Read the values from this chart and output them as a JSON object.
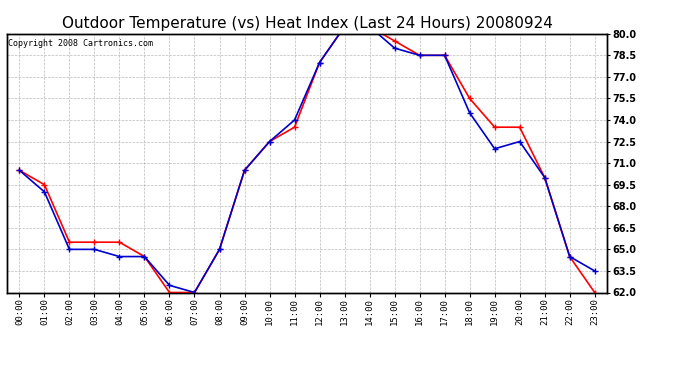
{
  "title": "Outdoor Temperature (vs) Heat Index (Last 24 Hours) 20080924",
  "copyright": "Copyright 2008 Cartronics.com",
  "hours": [
    "00:00",
    "01:00",
    "02:00",
    "03:00",
    "04:00",
    "05:00",
    "06:00",
    "07:00",
    "08:00",
    "09:00",
    "10:00",
    "11:00",
    "12:00",
    "13:00",
    "14:00",
    "15:00",
    "16:00",
    "17:00",
    "18:00",
    "19:00",
    "20:00",
    "21:00",
    "22:00",
    "23:00"
  ],
  "temp": [
    70.5,
    69.5,
    65.5,
    65.5,
    65.5,
    64.5,
    62.0,
    62.0,
    65.0,
    70.5,
    72.5,
    73.5,
    78.0,
    80.5,
    80.5,
    79.5,
    78.5,
    78.5,
    75.5,
    73.5,
    73.5,
    70.0,
    64.5,
    62.0
  ],
  "heat_index": [
    70.5,
    69.0,
    65.0,
    65.0,
    64.5,
    64.5,
    62.5,
    62.0,
    65.0,
    70.5,
    72.5,
    74.0,
    78.0,
    80.5,
    80.5,
    79.0,
    78.5,
    78.5,
    74.5,
    72.0,
    72.5,
    70.0,
    64.5,
    63.5
  ],
  "temp_color": "#FF0000",
  "heat_index_color": "#0000CC",
  "ylim_min": 62.0,
  "ylim_max": 80.0,
  "yticks": [
    62.0,
    63.5,
    65.0,
    66.5,
    68.0,
    69.5,
    71.0,
    72.5,
    74.0,
    75.5,
    77.0,
    78.5,
    80.0
  ],
  "background_color": "#FFFFFF",
  "grid_color": "#AAAAAA",
  "title_fontsize": 11,
  "copyright_fontsize": 6,
  "markersize": 4,
  "linewidth": 1.2
}
